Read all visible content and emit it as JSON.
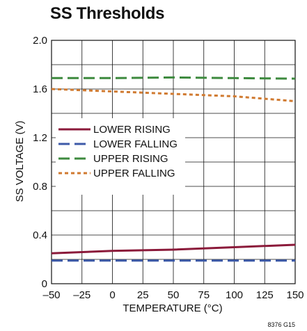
{
  "chart_data": {
    "type": "line",
    "title": "SS Thresholds",
    "xlabel": "TEMPERATURE (°C)",
    "ylabel": "SS VOLTAGE (V)",
    "xlim": [
      -50,
      150
    ],
    "ylim": [
      0,
      2.0
    ],
    "xticks": [
      -50,
      -25,
      0,
      25,
      50,
      75,
      100,
      125,
      150
    ],
    "xtick_labels": [
      "–50",
      "–25",
      "0",
      "25",
      "50",
      "75",
      "100",
      "125",
      "150"
    ],
    "yticks": [
      0,
      0.4,
      0.8,
      1.2,
      1.6,
      2.0
    ],
    "ytick_labels": [
      "0",
      "0.4",
      "0.8",
      "1.2",
      "1.6",
      "2.0"
    ],
    "grid": true,
    "legend_position": "center-left",
    "figure_id": "8376 G15",
    "series": [
      {
        "name": "LOWER RISING",
        "color": "#8b1a3a",
        "style": "solid",
        "x": [
          -50,
          0,
          50,
          100,
          150
        ],
        "y": [
          0.25,
          0.27,
          0.28,
          0.3,
          0.32
        ]
      },
      {
        "name": "LOWER FALLING",
        "color": "#3d5aa8",
        "style": "dashed",
        "x": [
          -50,
          0,
          50,
          100,
          150
        ],
        "y": [
          0.19,
          0.19,
          0.19,
          0.19,
          0.19
        ]
      },
      {
        "name": "UPPER RISING",
        "color": "#3d8a3e",
        "style": "dashed",
        "x": [
          -50,
          0,
          50,
          100,
          150
        ],
        "y": [
          1.69,
          1.69,
          1.695,
          1.69,
          1.685
        ]
      },
      {
        "name": "UPPER FALLING",
        "color": "#d07a30",
        "style": "dotted",
        "x": [
          -50,
          0,
          50,
          100,
          150
        ],
        "y": [
          1.6,
          1.58,
          1.56,
          1.54,
          1.5
        ]
      }
    ]
  }
}
